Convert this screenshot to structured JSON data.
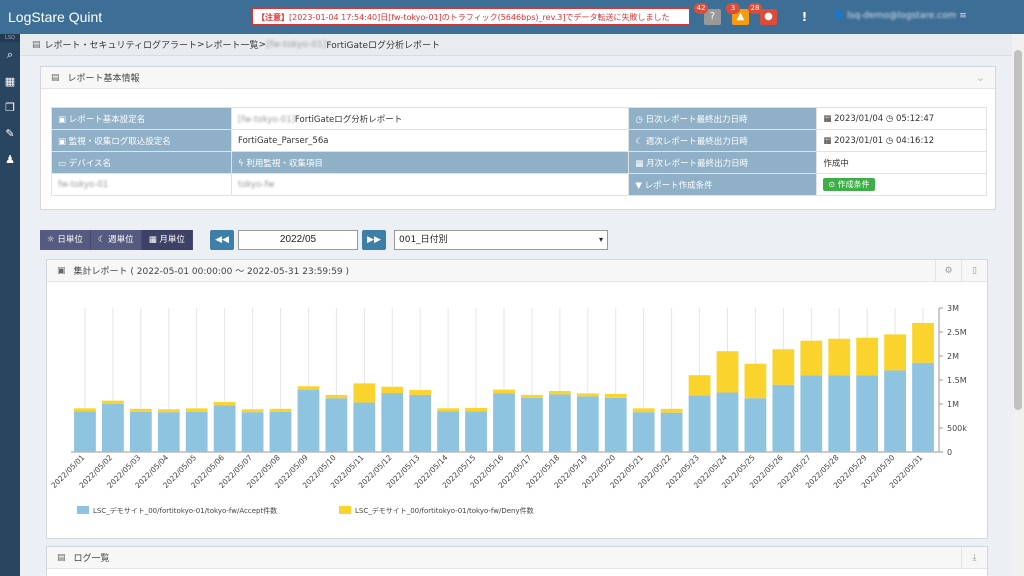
{
  "app": {
    "title": "LogStare Quint"
  },
  "topbar": {
    "alert_prefix": "【注意】",
    "alert_text": "[2023-01-04 17:54:40]日[fw-tokyo-01]のトラフィック(5646bps)_rev.3]でデータ転送に失敗しました",
    "badges": [
      {
        "count": "42",
        "color": "#999999",
        "icon": "question-icon"
      },
      {
        "count": "3",
        "color": "#f39c12",
        "icon": "warning-icon"
      },
      {
        "count": "28",
        "color": "#dd4b39",
        "icon": "error-icon"
      }
    ],
    "notice_icon": "exclamation-icon",
    "user": "lsq-demo@logstare.com"
  },
  "sidebar": {
    "top_label": "LSQ",
    "items": [
      {
        "icon": "search-icon",
        "glyph": "🔍"
      },
      {
        "icon": "chart-icon",
        "glyph": "▦"
      },
      {
        "icon": "book-icon",
        "glyph": "❐"
      },
      {
        "icon": "wrench-icon",
        "glyph": "🔧"
      },
      {
        "icon": "users-icon",
        "glyph": "👥"
      }
    ]
  },
  "breadcrumb": {
    "part1": "レポート・セキュリティログアラート",
    "sep": " > ",
    "part2": "レポート一覧",
    "blurred": "[fw-tokyo-01]",
    "part3": "FortiGateログ分析レポート"
  },
  "info_panel": {
    "title": "レポート基本情報",
    "rows": [
      {
        "l1": "レポート基本設定名",
        "v1_blur": "[fw-tokyo-01]",
        "v1": "FortiGateログ分析レポート",
        "l2": "日次レポート最終出力日時",
        "v2_date": "2023/01/04",
        "v2_time": "05:12:47"
      },
      {
        "l1": "監視・収集ログ取込設定名",
        "v1": "FortiGate_Parser_56a",
        "l2": "週次レポート最終出力日時",
        "v2_date": "2023/01/01",
        "v2_time": "04:16:12"
      },
      {
        "l1": "デバイス名",
        "l1b": "利用監視・収集項目",
        "l2": "月次レポート最終出力日時",
        "v2": "作成中"
      },
      {
        "v1a": "fw-tokyo-01",
        "v1b": "tokyo-fw",
        "l2": "レポート作成条件",
        "v2_tag": "作成条件"
      }
    ]
  },
  "controls": {
    "units": [
      "日単位",
      "週単位",
      "月単位"
    ],
    "prev": "◀◀",
    "next": "▶▶",
    "month": "2022/05",
    "select": "001_日付別"
  },
  "chart_panel": {
    "title_icon": "chart-icon",
    "title": "集計レポート ( 2022-05-01 00:00:00 ～ 2022-05-31 23:59:59 )",
    "bottom_title": "ログ一覧"
  },
  "chart_data": {
    "type": "bar",
    "stacked": true,
    "categories": [
      "2022/05/01",
      "2022/05/02",
      "2022/05/03",
      "2022/05/04",
      "2022/05/05",
      "2022/05/06",
      "2022/05/07",
      "2022/05/08",
      "2022/05/09",
      "2022/05/10",
      "2022/05/11",
      "2022/05/12",
      "2022/05/13",
      "2022/05/14",
      "2022/05/15",
      "2022/05/16",
      "2022/05/17",
      "2022/05/18",
      "2022/05/19",
      "2022/05/20",
      "2022/05/21",
      "2022/05/22",
      "2022/05/23",
      "2022/05/24",
      "2022/05/25",
      "2022/05/26",
      "2022/05/27",
      "2022/05/28",
      "2022/05/29",
      "2022/05/30",
      "2022/05/31"
    ],
    "series": [
      {
        "name": "LSC_デモサイト_00/fortitokyo-01/tokyo-fw/Accept件数",
        "color": "#8ec4e0",
        "values": [
          850000,
          1000000,
          840000,
          830000,
          840000,
          970000,
          830000,
          840000,
          1300000,
          1120000,
          1030000,
          1230000,
          1190000,
          850000,
          850000,
          1220000,
          1130000,
          1200000,
          1160000,
          1130000,
          830000,
          820000,
          1180000,
          1240000,
          1120000,
          1400000,
          1600000,
          1600000,
          1600000,
          1700000,
          1860000
        ]
      },
      {
        "name": "LSC_デモサイト_00/fortitokyo-01/tokyo-fw/Deny件数",
        "color": "#fad42c",
        "values": [
          60000,
          70000,
          60000,
          60000,
          70000,
          70000,
          60000,
          60000,
          70000,
          70000,
          400000,
          130000,
          100000,
          60000,
          70000,
          80000,
          60000,
          70000,
          60000,
          80000,
          80000,
          80000,
          420000,
          860000,
          720000,
          740000,
          720000,
          760000,
          780000,
          750000,
          830000
        ]
      }
    ],
    "yticks": [
      "0",
      "500k",
      "1M",
      "1.5M",
      "2M",
      "2.5M",
      "3M"
    ],
    "ylim": [
      0,
      3000000
    ],
    "legend": "bottom-left"
  }
}
